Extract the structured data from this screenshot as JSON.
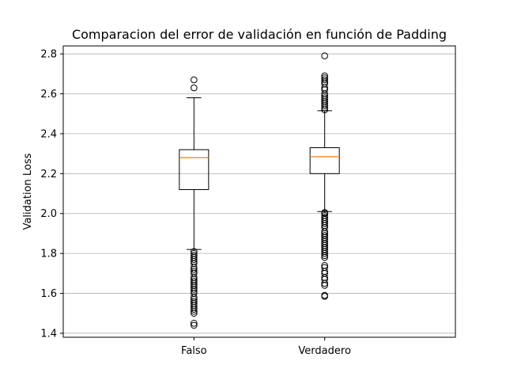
{
  "chart_data": {
    "type": "box",
    "title": "Comparacion del error de validación en función de Padding",
    "xlabel": "",
    "ylabel": "Validation Loss",
    "categories": [
      "Falso",
      "Verdadero"
    ],
    "ylim": [
      1.38,
      2.84
    ],
    "yticks": [
      1.4,
      1.6,
      1.8,
      2.0,
      2.2,
      2.4,
      2.6,
      2.8
    ],
    "ytick_labels": [
      "1.4",
      "1.6",
      "1.8",
      "2.0",
      "2.2",
      "2.4",
      "2.6",
      "2.8"
    ],
    "grid": "y",
    "boxes": [
      {
        "category": "Falso",
        "whisker_low": 1.82,
        "q1": 2.12,
        "median": 2.28,
        "q3": 2.32,
        "whisker_high": 2.58,
        "outliers": [
          2.67,
          2.63,
          1.81,
          1.8,
          1.79,
          1.78,
          1.77,
          1.76,
          1.75,
          1.73,
          1.72,
          1.71,
          1.7,
          1.68,
          1.67,
          1.66,
          1.65,
          1.64,
          1.63,
          1.62,
          1.61,
          1.6,
          1.58,
          1.57,
          1.56,
          1.55,
          1.54,
          1.53,
          1.52,
          1.51,
          1.5,
          1.45,
          1.44
        ]
      },
      {
        "category": "Verdadero",
        "whisker_low": 2.01,
        "q1": 2.2,
        "median": 2.285,
        "q3": 2.33,
        "whisker_high": 2.515,
        "outliers": [
          2.79,
          2.69,
          2.68,
          2.67,
          2.66,
          2.65,
          2.63,
          2.62,
          2.6,
          2.59,
          2.58,
          2.57,
          2.56,
          2.55,
          2.54,
          2.53,
          2.52,
          2.005,
          2.0,
          1.99,
          1.98,
          1.97,
          1.96,
          1.95,
          1.94,
          1.93,
          1.91,
          1.9,
          1.89,
          1.88,
          1.87,
          1.86,
          1.85,
          1.84,
          1.83,
          1.82,
          1.81,
          1.8,
          1.79,
          1.78,
          1.74,
          1.73,
          1.71,
          1.7,
          1.68,
          1.67,
          1.65,
          1.64,
          1.59,
          1.585
        ]
      }
    ],
    "colors": {
      "box": "#000000",
      "median": "#ff7f0e",
      "grid": "#b0b0b0"
    }
  }
}
